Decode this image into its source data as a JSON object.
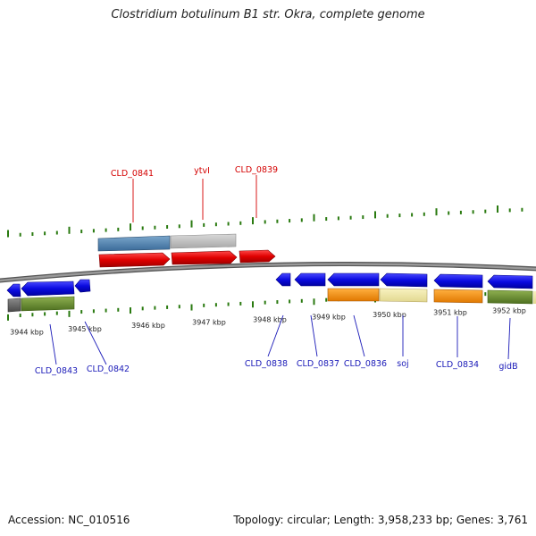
{
  "title": "Clostridium botulinum B1 str. Okra, complete genome",
  "footer": {
    "accession": "Accession: NC_010516",
    "summary": "Topology: circular; Length: 3,958,233 bp; Genes: 3,761"
  },
  "scale": {
    "ticks": [
      "3944 kbp",
      "3945 kbp",
      "3946 kbp",
      "3947 kbp",
      "3948 kbp",
      "3949 kbp",
      "3950 kbp",
      "3951 kbp",
      "3952 kbp"
    ]
  },
  "genes_forward": [
    "CLD_0841",
    "ytvI",
    "CLD_0839"
  ],
  "genes_reverse": [
    "CLD_0843",
    "CLD_0842",
    "CLD_0838",
    "CLD_0837",
    "CLD_0836",
    "soj",
    "CLD_0834",
    "gidB"
  ],
  "colors": {
    "forward_gene": "#e00000",
    "reverse_gene": "#0a0ae0",
    "forward_label": "#d40000",
    "reverse_label": "#1a1ab8",
    "tick": "#2a7a10",
    "backbone": "#777777"
  }
}
